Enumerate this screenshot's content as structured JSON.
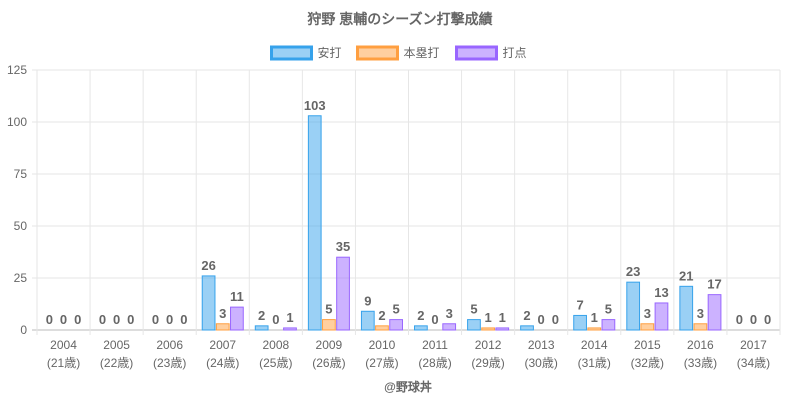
{
  "chart_data": {
    "type": "bar",
    "title": "狩野 恵輔のシーズン打撃成績",
    "categories": [
      "2004",
      "2005",
      "2006",
      "2007",
      "2008",
      "2009",
      "2010",
      "2011",
      "2012",
      "2013",
      "2014",
      "2015",
      "2016",
      "2017"
    ],
    "category_sublabels": [
      "(21歳)",
      "(22歳)",
      "(23歳)",
      "(24歳)",
      "(25歳)",
      "(26歳)",
      "(27歳)",
      "(28歳)",
      "(29歳)",
      "(30歳)",
      "(31歳)",
      "(32歳)",
      "(33歳)",
      "(34歳)"
    ],
    "series": [
      {
        "name": "安打",
        "color": "#36a2eb",
        "values": [
          0,
          0,
          0,
          26,
          2,
          103,
          9,
          2,
          5,
          2,
          7,
          23,
          21,
          0
        ]
      },
      {
        "name": "本塁打",
        "color": "#ff9f40",
        "values": [
          0,
          0,
          0,
          3,
          0,
          5,
          2,
          0,
          1,
          0,
          1,
          3,
          3,
          0
        ]
      },
      {
        "name": "打点",
        "color": "#9966ff",
        "values": [
          0,
          0,
          0,
          11,
          1,
          35,
          5,
          3,
          1,
          0,
          5,
          13,
          17,
          0
        ]
      }
    ],
    "ylim": [
      0,
      125
    ],
    "yticks": [
      0,
      25,
      50,
      75,
      100,
      125
    ],
    "grid": true,
    "legend_position": "top",
    "xlabel": "",
    "ylabel": "",
    "credit": "@野球丼"
  }
}
